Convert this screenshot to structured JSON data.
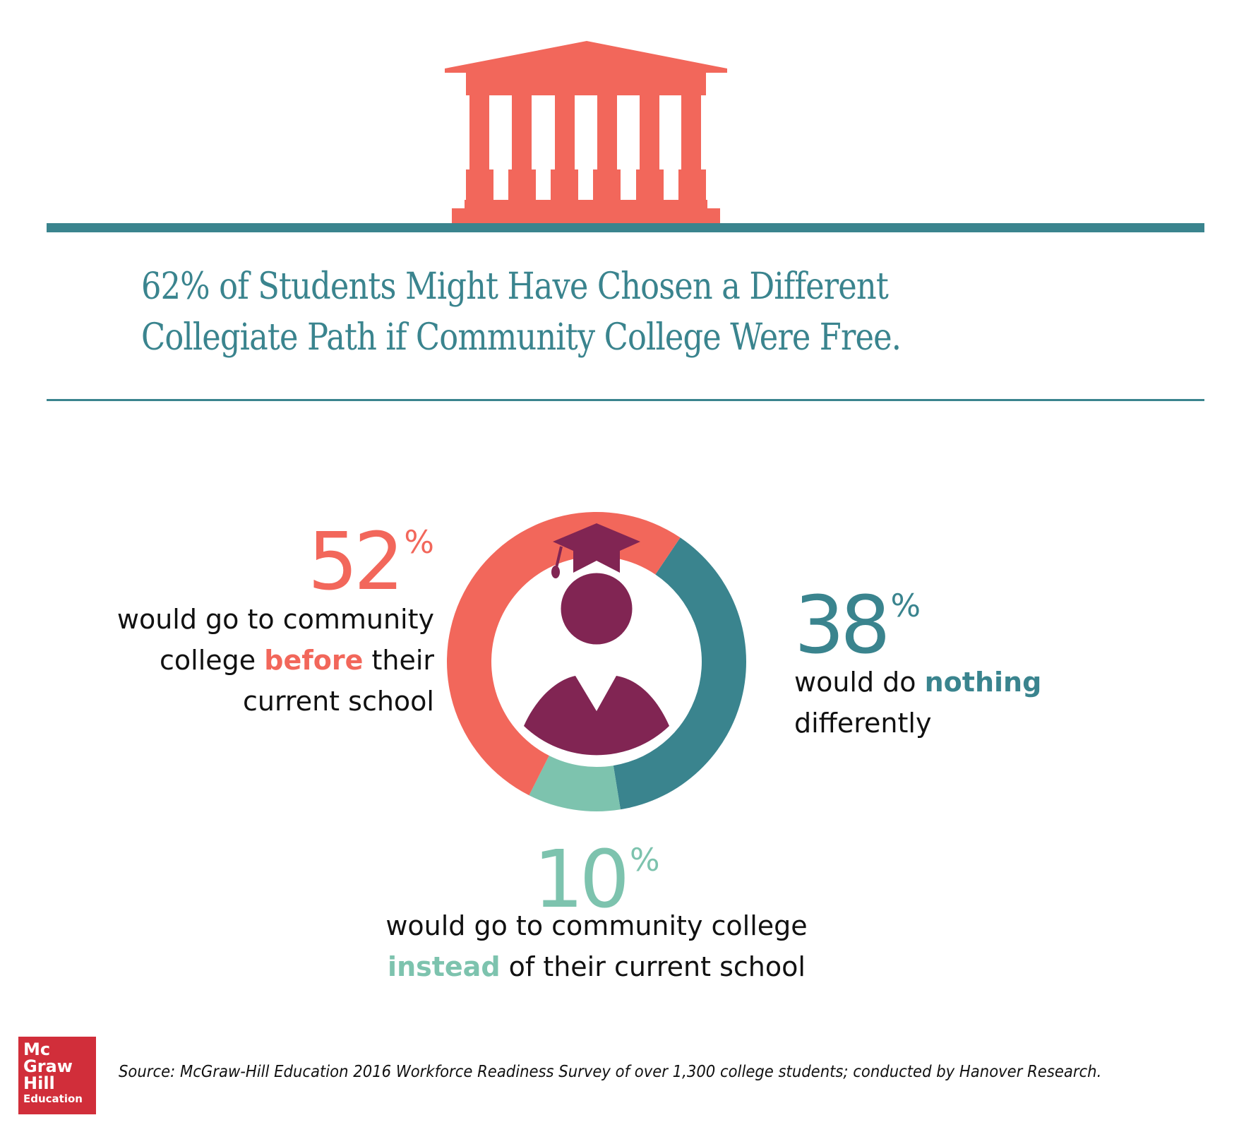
{
  "header": {
    "icon": "university-building-icon",
    "headline_line1": "62% of Students Might Have Chosen a Different",
    "headline_line2": "Collegiate Path if Community College Were Free."
  },
  "center_icon": "graduate-student-icon",
  "stats": {
    "before": {
      "value": "52",
      "unit": "%",
      "line1": "would go to community",
      "line2_pre": "college ",
      "line2_em": "before",
      "line2_post": " their",
      "line3": "current school"
    },
    "nothing": {
      "value": "38",
      "unit": "%",
      "line1_pre": "would do ",
      "line1_em": "nothing",
      "line2": "differently"
    },
    "instead": {
      "value": "10",
      "unit": "%",
      "line1": "would go to community college",
      "line2_em": "instead",
      "line2_post": " of their current school"
    }
  },
  "footer": {
    "logo": {
      "line1": "Mc",
      "line2": "Graw",
      "line3": "Hill",
      "line4": "Education"
    },
    "source": "Source: McGraw-Hill Education 2016 Workforce Readiness Survey of over 1,300 college students; conducted by Hanover Research."
  },
  "colors": {
    "coral": "#f2675b",
    "teal": "#3a848e",
    "mint": "#7dc3ae",
    "plum": "#812553",
    "logo_red": "#d12e3a"
  },
  "chart_data": {
    "type": "pie",
    "variant": "donut",
    "title": "62% of Students Might Have Chosen a Different Collegiate Path if Community College Were Free.",
    "categories": [
      "would go to community college before their current school",
      "would do nothing differently",
      "would go to community college instead of their current school"
    ],
    "values": [
      52,
      38,
      10
    ],
    "unit": "%",
    "colors": [
      "#f2675b",
      "#3a848e",
      "#7dc3ae"
    ],
    "legend": "none (direct labels)",
    "source": "McGraw-Hill Education 2016 Workforce Readiness Survey of over 1,300 college students; conducted by Hanover Research."
  }
}
